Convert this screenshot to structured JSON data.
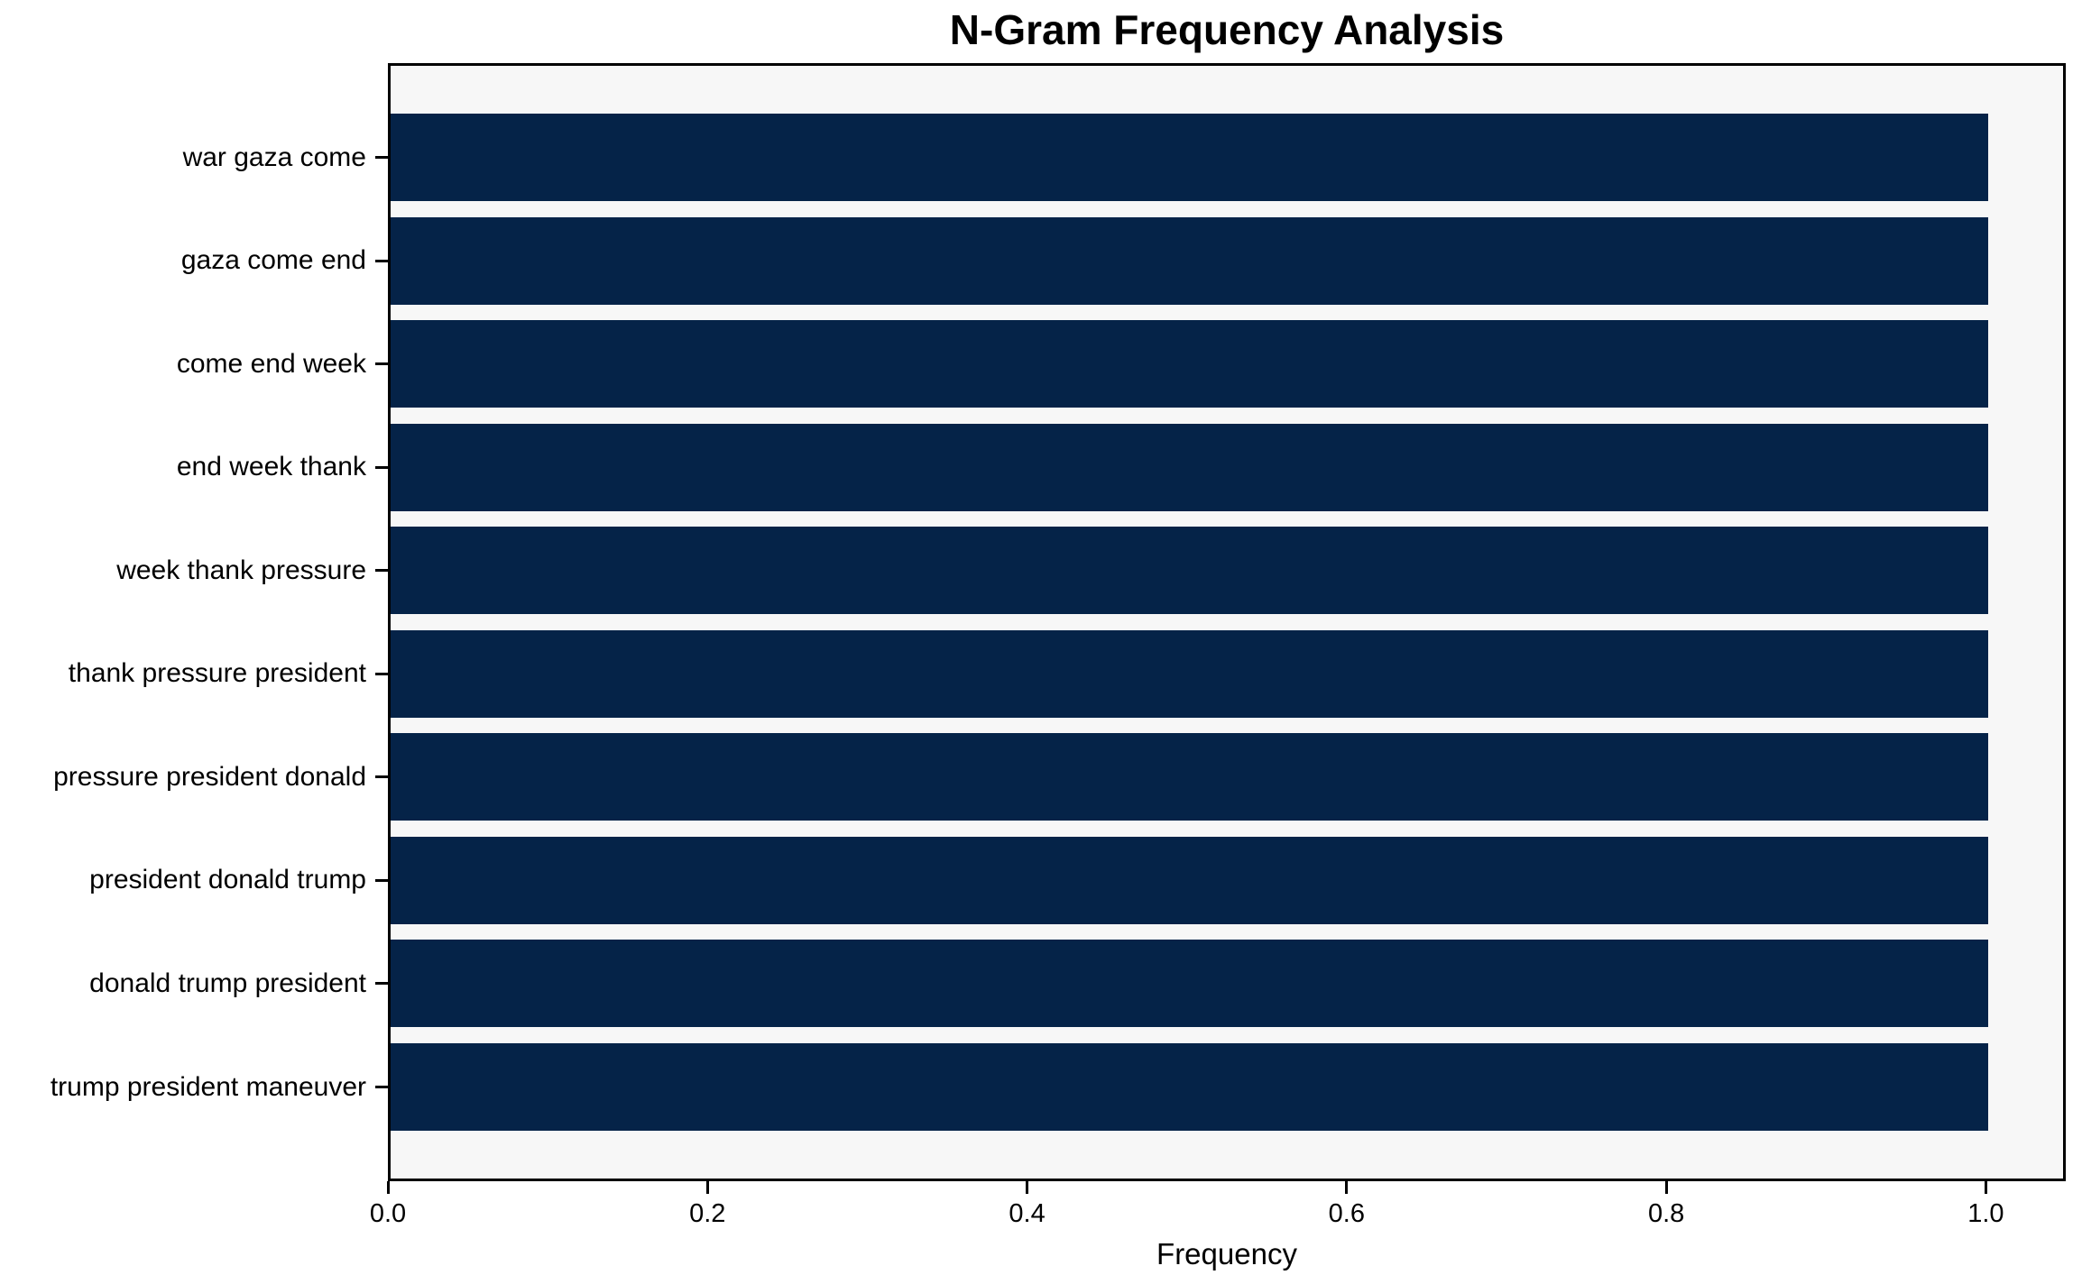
{
  "chart_data": {
    "type": "bar",
    "orientation": "horizontal",
    "title": "N-Gram Frequency Analysis",
    "xlabel": "Frequency",
    "ylabel": "",
    "categories": [
      "war gaza come",
      "gaza come end",
      "come end week",
      "end week thank",
      "week thank pressure",
      "thank pressure president",
      "pressure president donald",
      "president donald trump",
      "donald trump president",
      "trump president maneuver"
    ],
    "values": [
      1.0,
      1.0,
      1.0,
      1.0,
      1.0,
      1.0,
      1.0,
      1.0,
      1.0,
      1.0
    ],
    "series": [
      {
        "name": "Frequency",
        "values": [
          1.0,
          1.0,
          1.0,
          1.0,
          1.0,
          1.0,
          1.0,
          1.0,
          1.0,
          1.0
        ]
      }
    ],
    "xlim": [
      0.0,
      1.05
    ],
    "x_ticks": [
      0.0,
      0.2,
      0.4,
      0.6,
      0.8,
      1.0
    ],
    "x_tick_labels": [
      "0.0",
      "0.2",
      "0.4",
      "0.6",
      "0.8",
      "1.0"
    ],
    "grid": false,
    "legend": "none",
    "colors": {
      "bar": "#052348",
      "plot_bg": "#f7f7f7",
      "figure_bg": "#ffffff",
      "spine": "#000000",
      "text": "#000000"
    }
  }
}
